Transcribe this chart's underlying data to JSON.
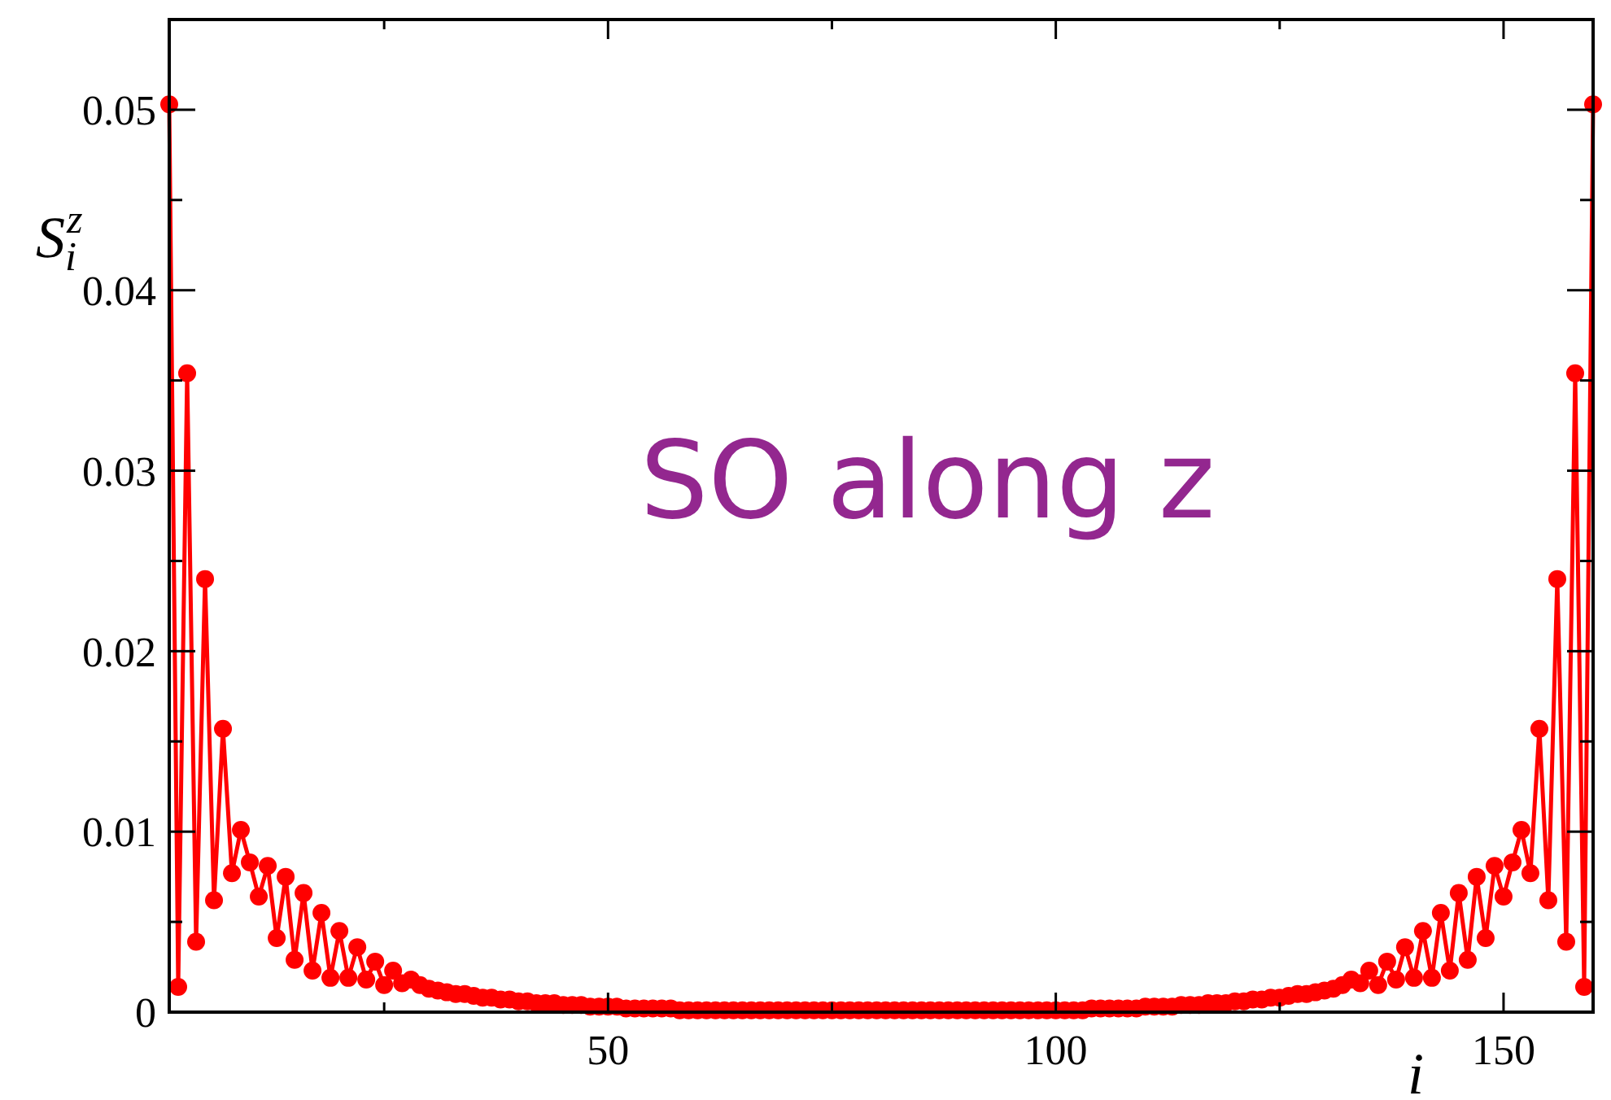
{
  "chart_data": {
    "type": "line",
    "xlabel": "i",
    "ylabel": "S$_{i}$$^{z}$",
    "annotations": [
      "SO along z"
    ],
    "x": [
      1,
      2,
      3,
      4,
      5,
      6,
      7,
      8,
      9,
      10,
      11,
      12,
      13,
      14,
      15,
      16,
      17,
      18,
      19,
      20,
      21,
      22,
      23,
      24,
      25,
      26,
      27,
      28,
      29,
      30,
      31,
      32,
      33,
      34,
      35,
      36,
      37,
      38,
      39,
      40,
      41,
      42,
      43,
      44,
      45,
      46,
      47,
      48,
      49,
      50,
      51,
      52,
      53,
      54,
      55,
      56,
      57,
      58,
      59,
      60,
      61,
      62,
      63,
      64,
      65,
      66,
      67,
      68,
      69,
      70,
      71,
      72,
      73,
      74,
      75,
      76,
      77,
      78,
      79,
      80,
      81,
      82,
      83,
      84,
      85,
      86,
      87,
      88,
      89,
      90,
      91,
      92,
      93,
      94,
      95,
      96,
      97,
      98,
      99,
      100,
      101,
      102,
      103,
      104,
      105,
      106,
      107,
      108,
      109,
      110,
      111,
      112,
      113,
      114,
      115,
      116,
      117,
      118,
      119,
      120,
      121,
      122,
      123,
      124,
      125,
      126,
      127,
      128,
      129,
      130,
      131,
      132,
      133,
      134,
      135,
      136,
      137,
      138,
      139,
      140,
      141,
      142,
      143,
      144,
      145,
      146,
      147,
      148,
      149,
      150,
      151,
      152,
      153,
      154,
      155,
      156,
      157,
      158,
      159,
      160
    ],
    "series": [
      {
        "color": "#ff0000",
        "values": [
          0.0503,
          0.0014,
          0.0354,
          0.0039,
          0.024,
          0.0062,
          0.0157,
          0.0077,
          0.0101,
          0.0083,
          0.0064,
          0.0081,
          0.0041,
          0.0075,
          0.0029,
          0.0066,
          0.0023,
          0.0055,
          0.0019,
          0.0045,
          0.0019,
          0.0036,
          0.0018,
          0.0028,
          0.0015,
          0.0023,
          0.0016,
          0.0018,
          0.0015,
          0.0013,
          0.0012,
          0.0011,
          0.001,
          0.001,
          0.0009,
          0.0008,
          0.0008,
          0.0007,
          0.0007,
          0.0006,
          0.0006,
          0.0005,
          0.0005,
          0.0005,
          0.0004,
          0.0004,
          0.0004,
          0.0003,
          0.0003,
          0.0003,
          0.0003,
          0.0002,
          0.0002,
          0.0002,
          0.0002,
          0.0002,
          0.0002,
          0.0001,
          0.0001,
          0.0001,
          0.0001,
          0.0001,
          0.0001,
          0.0001,
          0.0001,
          0.0001,
          0.0001,
          0.0001,
          0.0001,
          0.0001,
          0.0001,
          0.0001,
          0.0001,
          0.0001,
          0.0001,
          0.0001,
          0.0001,
          0.0001,
          0.0001,
          0.0001,
          0.0001,
          0.0001,
          0.0001,
          0.0001,
          0.0001,
          0.0001,
          0.0001,
          0.0001,
          0.0001,
          0.0001,
          0.0001,
          0.0001,
          0.0001,
          0.0001,
          0.0001,
          0.0001,
          0.0001,
          0.0001,
          0.0001,
          0.0001,
          0.0001,
          0.0001,
          0.0001,
          0.0002,
          0.0002,
          0.0002,
          0.0002,
          0.0002,
          0.0002,
          0.0003,
          0.0003,
          0.0003,
          0.0003,
          0.0004,
          0.0004,
          0.0004,
          0.0005,
          0.0005,
          0.0005,
          0.0006,
          0.0006,
          0.0007,
          0.0007,
          0.0008,
          0.0008,
          0.0009,
          0.001,
          0.001,
          0.0011,
          0.0012,
          0.0013,
          0.0015,
          0.0018,
          0.0016,
          0.0023,
          0.0015,
          0.0028,
          0.0018,
          0.0036,
          0.0019,
          0.0045,
          0.0019,
          0.0055,
          0.0023,
          0.0066,
          0.0029,
          0.0075,
          0.0041,
          0.0081,
          0.0064,
          0.0083,
          0.0101,
          0.0077,
          0.0157,
          0.0062,
          0.024,
          0.0039,
          0.0354,
          0.0014,
          0.0503
        ]
      }
    ],
    "xlim": [
      1,
      160
    ],
    "xticks": [
      {
        "value": 25,
        "label": null
      },
      50,
      {
        "value": 75,
        "label": null
      },
      100,
      {
        "value": 125,
        "label": null
      },
      150
    ],
    "ylim": [
      0,
      0.055
    ],
    "yticks": [
      0,
      {
        "value": 0.005,
        "label": null
      },
      0.01,
      {
        "value": 0.015,
        "label": null
      },
      0.02,
      {
        "value": 0.025,
        "label": null
      },
      0.03,
      {
        "value": 0.035,
        "label": null
      },
      0.04,
      {
        "value": 0.045,
        "label": null
      },
      0.05
    ],
    "marker": "circle",
    "line_style": "solid",
    "grid": false
  }
}
